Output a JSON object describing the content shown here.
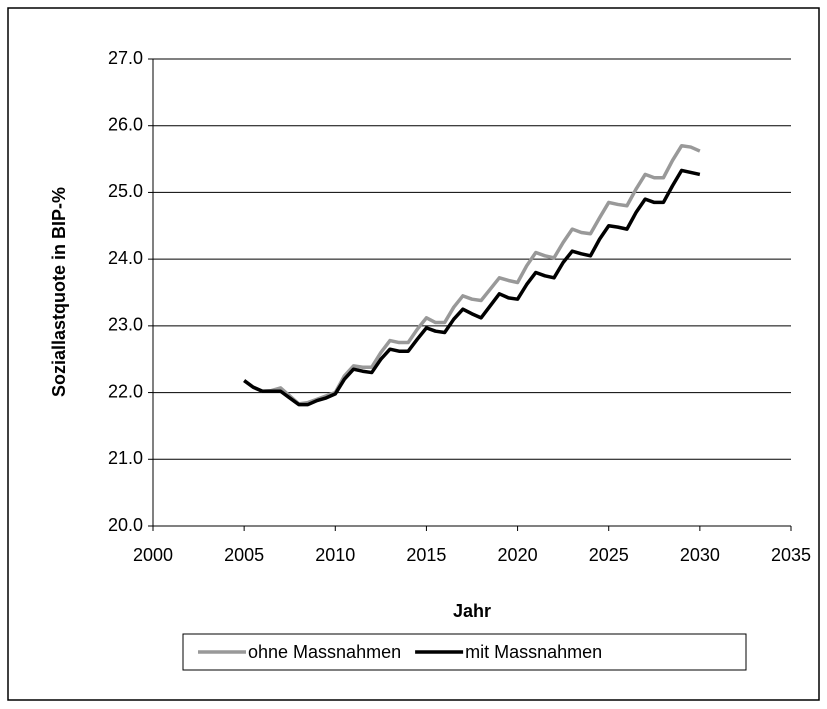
{
  "chart_data": {
    "type": "line",
    "x_label": "Jahr",
    "y_label": "Soziallastquote in BIP-%",
    "x": [
      2005,
      2005.5,
      2006,
      2006.5,
      2007,
      2007.5,
      2008,
      2008.5,
      2009,
      2009.5,
      2010,
      2010.5,
      2011,
      2011.5,
      2012,
      2012.5,
      2013,
      2013.5,
      2014,
      2014.5,
      2015,
      2015.5,
      2016,
      2016.5,
      2017,
      2017.5,
      2018,
      2018.5,
      2019,
      2019.5,
      2020,
      2020.5,
      2021,
      2021.5,
      2022,
      2022.5,
      2023,
      2023.5,
      2024,
      2024.5,
      2025,
      2025.5,
      2026,
      2026.5,
      2027,
      2027.5,
      2028,
      2028.5,
      2029,
      2029.5,
      2030
    ],
    "series": [
      {
        "name": "ohne Massnahmen",
        "color": "#999999",
        "values": [
          22.18,
          22.08,
          22.02,
          22.03,
          22.07,
          21.95,
          21.83,
          21.85,
          21.9,
          21.95,
          22.0,
          22.25,
          22.4,
          22.38,
          22.38,
          22.6,
          22.78,
          22.75,
          22.75,
          22.95,
          23.12,
          23.05,
          23.05,
          23.28,
          23.45,
          23.4,
          23.38,
          23.55,
          23.72,
          23.68,
          23.65,
          23.9,
          24.1,
          24.05,
          24.02,
          24.25,
          24.45,
          24.4,
          24.38,
          24.62,
          24.85,
          24.82,
          24.8,
          25.05,
          25.27,
          25.22,
          25.22,
          25.48,
          25.7,
          25.68,
          25.62
        ]
      },
      {
        "name": "mit Massnahmen",
        "color": "#000000",
        "values": [
          22.18,
          22.08,
          22.02,
          22.02,
          22.02,
          21.92,
          21.82,
          21.82,
          21.88,
          21.92,
          21.98,
          22.2,
          22.35,
          22.32,
          22.3,
          22.5,
          22.65,
          22.62,
          22.62,
          22.8,
          22.97,
          22.92,
          22.9,
          23.1,
          23.25,
          23.18,
          23.12,
          23.3,
          23.48,
          23.42,
          23.4,
          23.62,
          23.8,
          23.75,
          23.72,
          23.95,
          24.12,
          24.08,
          24.05,
          24.3,
          24.5,
          24.48,
          24.45,
          24.7,
          24.9,
          24.85,
          24.85,
          25.1,
          25.33,
          25.3,
          25.27
        ]
      }
    ],
    "xlim": [
      2000,
      2035
    ],
    "xticks": [
      2000,
      2005,
      2010,
      2015,
      2020,
      2025,
      2030,
      2035
    ],
    "ylim": [
      20,
      27
    ],
    "yticks": [
      {
        "value": 20,
        "label": "20.0"
      },
      {
        "value": 21,
        "label": "21.0"
      },
      {
        "value": 22,
        "label": "22.0"
      },
      {
        "value": 23,
        "label": "23.0"
      },
      {
        "value": 24,
        "label": "24.0"
      },
      {
        "value": 25,
        "label": "25.0"
      },
      {
        "value": 26,
        "label": "26.0"
      },
      {
        "value": 27,
        "label": "27.0"
      }
    ],
    "grid": true,
    "legend": "bottom"
  }
}
